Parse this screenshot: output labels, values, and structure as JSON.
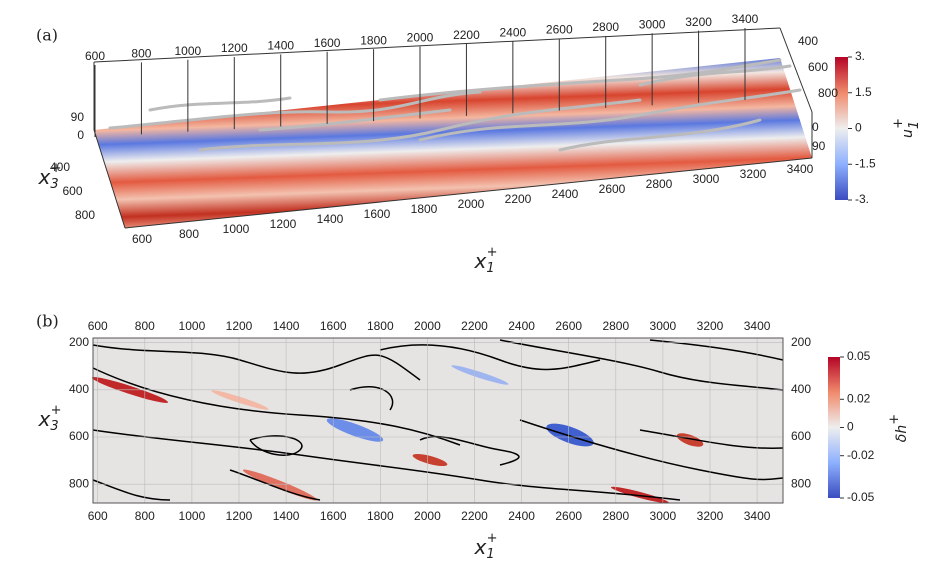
{
  "panel_a": {
    "label": "(a)",
    "x_label": {
      "base": "x",
      "sub": "1",
      "sup": "+"
    },
    "z_label": {
      "base": "x",
      "sub": "3",
      "sup": "+"
    },
    "xlim": [
      600,
      3400
    ],
    "xticks": [
      600,
      800,
      1000,
      1200,
      1400,
      1600,
      1800,
      2000,
      2200,
      2400,
      2600,
      2800,
      3000,
      3200,
      3400
    ],
    "zlim": [
      400,
      800
    ],
    "zticks": [
      400,
      600,
      800
    ],
    "ylim": [
      0,
      90
    ],
    "yticks": [
      90,
      0
    ],
    "colorbar": {
      "title": {
        "base": "u",
        "sub": "1",
        "sup": "+"
      },
      "lim": [
        -3,
        3
      ],
      "ticks": [
        {
          "value": 3,
          "label": "3."
        },
        1.5,
        0,
        -1.5,
        {
          "value": -3,
          "label": "-3."
        }
      ]
    }
  },
  "panel_b": {
    "label": "(b)",
    "x_label": {
      "base": "x",
      "sub": "1",
      "sup": "+"
    },
    "y_label": {
      "base": "x",
      "sub": "3",
      "sup": "+"
    },
    "xlim": [
      580,
      3510
    ],
    "xticks": [
      600,
      800,
      1000,
      1200,
      1400,
      1600,
      1800,
      2000,
      2200,
      2400,
      2600,
      2800,
      3000,
      3200,
      3400
    ],
    "ylim": [
      180,
      880
    ],
    "yticks": [
      200,
      400,
      600,
      800
    ],
    "colorbar": {
      "title": {
        "base": "δh",
        "sup": "+"
      },
      "lim": [
        -0.05,
        0.05
      ],
      "ticks": [
        0.05,
        0.02,
        0,
        -0.02,
        -0.05
      ]
    }
  }
}
